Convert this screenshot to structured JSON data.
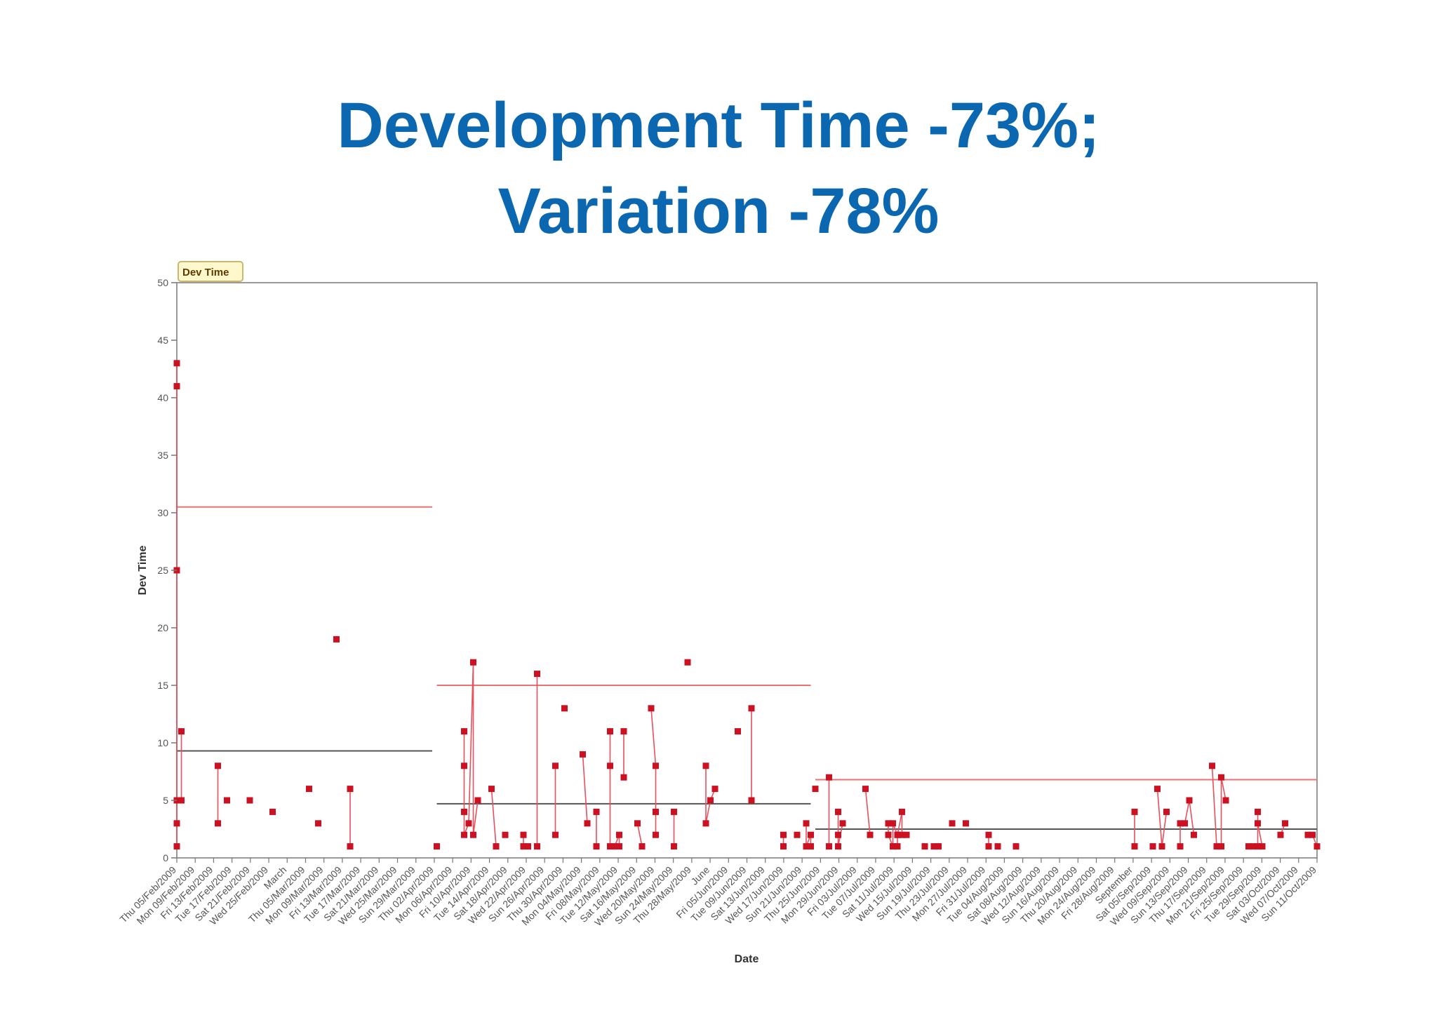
{
  "slide": {
    "title_line1": "Development Time -73%;",
    "title_line2": "Variation -78%"
  },
  "colors": {
    "title": "#0a67b0",
    "series": "#cc1122",
    "series_line": "#e8505c",
    "mean_line": "#555555",
    "limit_line": "#f07070",
    "legend_bg": "#fff8cc",
    "legend_border": "#c8b870"
  },
  "chart_data": {
    "type": "line",
    "legend": "Dev Time",
    "legend_position": "top-left",
    "xlabel": "Date",
    "ylabel": "Dev Time",
    "ylim": [
      0,
      50
    ],
    "yticks": [
      0,
      5,
      10,
      15,
      20,
      25,
      30,
      35,
      40,
      45,
      50
    ],
    "grid": false,
    "x_tick_labels": [
      "Thu 05/Feb/2009",
      "Mon 09/Feb/2009",
      "Fri 13/Feb/2009",
      "Tue 17/Feb/2009",
      "Sat 21/Feb/2009",
      "Wed 25/Feb/2009",
      "March",
      "Thu 05/Mar/2009",
      "Mon 09/Mar/2009",
      "Fri 13/Mar/2009",
      "Tue 17/Mar/2009",
      "Sat 21/Mar/2009",
      "Wed 25/Mar/2009",
      "Sun 29/Mar/2009",
      "Thu 02/Apr/2009",
      "Mon 06/Apr/2009",
      "Fri 10/Apr/2009",
      "Tue 14/Apr/2009",
      "Sat 18/Apr/2009",
      "Wed 22/Apr/2009",
      "Sun 26/Apr/2009",
      "Thu 30/Apr/2009",
      "Mon 04/May/2009",
      "Fri 08/May/2009",
      "Tue 12/May/2009",
      "Sat 16/May/2009",
      "Wed 20/May/2009",
      "Sun 24/May/2009",
      "Thu 28/May/2009",
      "June",
      "Fri 05/Jun/2009",
      "Tue 09/Jun/2009",
      "Sat 13/Jun/2009",
      "Wed 17/Jun/2009",
      "Sun 21/Jun/2009",
      "Thu 25/Jun/2009",
      "Mon 29/Jun/2009",
      "Fri 03/Jul/2009",
      "Tue 07/Jul/2009",
      "Sat 11/Jul/2009",
      "Wed 15/Jul/2009",
      "Sun 19/Jul/2009",
      "Thu 23/Jul/2009",
      "Mon 27/Jul/2009",
      "Fri 31/Jul/2009",
      "Tue 04/Aug/2009",
      "Sat 08/Aug/2009",
      "Wed 12/Aug/2009",
      "Sun 16/Aug/2009",
      "Thu 20/Aug/2009",
      "Mon 24/Aug/2009",
      "Fri 28/Aug/2009",
      "September",
      "Sat 05/Sep/2009",
      "Wed 09/Sep/2009",
      "Sun 13/Sep/2009",
      "Thu 17/Sep/2009",
      "Mon 21/Sep/2009",
      "Fri 25/Sep/2009",
      "Tue 29/Sep/2009",
      "Sat 03/Oct/2009",
      "Wed 07/Oct/2009",
      "Sun 11/Oct/2009"
    ],
    "xlim": [
      "2009-02-05",
      "2009-10-13"
    ],
    "series": [
      {
        "name": "Dev Time",
        "segments": [
          [
            [
              "2009-02-05",
              1
            ],
            [
              "2009-02-05",
              3
            ],
            [
              "2009-02-05",
              25
            ],
            [
              "2009-02-05",
              41
            ],
            [
              "2009-02-05",
              43
            ],
            [
              "2009-02-05",
              5
            ],
            [
              "2009-02-06",
              5
            ],
            [
              "2009-02-06",
              11
            ]
          ],
          [
            [
              "2009-02-14",
              8
            ],
            [
              "2009-02-14",
              3
            ]
          ],
          [
            [
              "2009-02-16",
              5
            ]
          ],
          [
            [
              "2009-02-21",
              5
            ]
          ],
          [
            [
              "2009-02-26",
              4
            ]
          ],
          [
            [
              "2009-03-06",
              6
            ]
          ],
          [
            [
              "2009-03-08",
              3
            ]
          ],
          [
            [
              "2009-03-12",
              19
            ]
          ],
          [
            [
              "2009-03-15",
              6
            ],
            [
              "2009-03-15",
              1
            ]
          ],
          [
            [
              "2009-04-03",
              1
            ]
          ],
          [
            [
              "2009-04-09",
              11
            ],
            [
              "2009-04-09",
              8
            ],
            [
              "2009-04-09",
              4
            ],
            [
              "2009-04-09",
              2
            ],
            [
              "2009-04-10",
              3
            ],
            [
              "2009-04-11",
              17
            ],
            [
              "2009-04-11",
              2
            ],
            [
              "2009-04-12",
              5
            ]
          ],
          [
            [
              "2009-04-15",
              6
            ],
            [
              "2009-04-16",
              1
            ]
          ],
          [
            [
              "2009-04-18",
              2
            ]
          ],
          [
            [
              "2009-04-22",
              2
            ],
            [
              "2009-04-22",
              1
            ],
            [
              "2009-04-23",
              1
            ]
          ],
          [
            [
              "2009-04-25",
              16
            ],
            [
              "2009-04-25",
              1
            ]
          ],
          [
            [
              "2009-04-29",
              8
            ],
            [
              "2009-04-29",
              2
            ]
          ],
          [
            [
              "2009-05-01",
              13
            ]
          ],
          [
            [
              "2009-05-05",
              9
            ],
            [
              "2009-05-06",
              3
            ]
          ],
          [
            [
              "2009-05-08",
              4
            ],
            [
              "2009-05-08",
              1
            ]
          ],
          [
            [
              "2009-05-11",
              11
            ],
            [
              "2009-05-11",
              8
            ],
            [
              "2009-05-11",
              1
            ],
            [
              "2009-05-12",
              1
            ],
            [
              "2009-05-13",
              2
            ],
            [
              "2009-05-13",
              1
            ]
          ],
          [
            [
              "2009-05-14",
              11
            ],
            [
              "2009-05-14",
              7
            ]
          ],
          [
            [
              "2009-05-17",
              3
            ],
            [
              "2009-05-18",
              1
            ]
          ],
          [
            [
              "2009-05-20",
              13
            ],
            [
              "2009-05-21",
              8
            ],
            [
              "2009-05-21",
              4
            ],
            [
              "2009-05-21",
              2
            ]
          ],
          [
            [
              "2009-05-25",
              4
            ],
            [
              "2009-05-25",
              1
            ]
          ],
          [
            [
              "2009-05-28",
              17
            ]
          ],
          [
            [
              "2009-06-01",
              8
            ],
            [
              "2009-06-01",
              3
            ],
            [
              "2009-06-02",
              5
            ],
            [
              "2009-06-03",
              6
            ]
          ],
          [
            [
              "2009-06-08",
              11
            ]
          ],
          [
            [
              "2009-06-11",
              13
            ],
            [
              "2009-06-11",
              5
            ]
          ],
          [
            [
              "2009-06-18",
              2
            ],
            [
              "2009-06-18",
              1
            ]
          ],
          [
            [
              "2009-06-21",
              2
            ]
          ],
          [
            [
              "2009-06-23",
              3
            ],
            [
              "2009-06-23",
              1
            ],
            [
              "2009-06-24",
              2
            ],
            [
              "2009-06-24",
              1
            ]
          ],
          [
            [
              "2009-06-25",
              6
            ]
          ],
          [
            [
              "2009-06-28",
              7
            ],
            [
              "2009-06-28",
              1
            ]
          ],
          [
            [
              "2009-06-30",
              4
            ],
            [
              "2009-06-30",
              2
            ],
            [
              "2009-06-30",
              1
            ],
            [
              "2009-07-01",
              3
            ]
          ],
          [
            [
              "2009-07-06",
              6
            ],
            [
              "2009-07-07",
              2
            ]
          ],
          [
            [
              "2009-07-11",
              3
            ],
            [
              "2009-07-11",
              2
            ],
            [
              "2009-07-12",
              1
            ],
            [
              "2009-07-12",
              3
            ],
            [
              "2009-07-13",
              2
            ],
            [
              "2009-07-13",
              1
            ],
            [
              "2009-07-13",
              2
            ],
            [
              "2009-07-14",
              4
            ],
            [
              "2009-07-14",
              2
            ],
            [
              "2009-07-15",
              2
            ]
          ],
          [
            [
              "2009-07-19",
              1
            ]
          ],
          [
            [
              "2009-07-21",
              1
            ],
            [
              "2009-07-22",
              1
            ]
          ],
          [
            [
              "2009-07-25",
              3
            ]
          ],
          [
            [
              "2009-07-28",
              3
            ]
          ],
          [
            [
              "2009-08-02",
              2
            ],
            [
              "2009-08-02",
              1
            ]
          ],
          [
            [
              "2009-08-04",
              1
            ]
          ],
          [
            [
              "2009-08-08",
              1
            ]
          ],
          [
            [
              "2009-09-03",
              4
            ],
            [
              "2009-09-03",
              1
            ]
          ],
          [
            [
              "2009-09-07",
              1
            ]
          ],
          [
            [
              "2009-09-08",
              6
            ],
            [
              "2009-09-09",
              1
            ],
            [
              "2009-09-10",
              4
            ]
          ],
          [
            [
              "2009-09-13",
              1
            ],
            [
              "2009-09-13",
              3
            ],
            [
              "2009-09-14",
              3
            ],
            [
              "2009-09-15",
              5
            ],
            [
              "2009-09-16",
              2
            ]
          ],
          [
            [
              "2009-09-20",
              8
            ],
            [
              "2009-09-21",
              1
            ],
            [
              "2009-09-22",
              1
            ],
            [
              "2009-09-22",
              7
            ],
            [
              "2009-09-23",
              5
            ]
          ],
          [
            [
              "2009-09-28",
              1
            ],
            [
              "2009-09-29",
              1
            ],
            [
              "2009-09-30",
              1
            ],
            [
              "2009-09-30",
              4
            ],
            [
              "2009-09-30",
              3
            ],
            [
              "2009-10-01",
              1
            ]
          ],
          [
            [
              "2009-10-05",
              2
            ],
            [
              "2009-10-06",
              3
            ]
          ],
          [
            [
              "2009-10-11",
              2
            ],
            [
              "2009-10-12",
              2
            ],
            [
              "2009-10-13",
              1
            ]
          ]
        ]
      }
    ],
    "reference_lines": [
      {
        "kind": "upper_limit",
        "from": "2009-02-05",
        "to": "2009-04-02",
        "value": 30.5
      },
      {
        "kind": "mean",
        "from": "2009-02-05",
        "to": "2009-04-02",
        "value": 9.3
      },
      {
        "kind": "upper_limit",
        "from": "2009-04-03",
        "to": "2009-06-24",
        "value": 15
      },
      {
        "kind": "mean",
        "from": "2009-04-03",
        "to": "2009-06-24",
        "value": 4.7
      },
      {
        "kind": "upper_limit",
        "from": "2009-06-25",
        "to": "2009-10-13",
        "value": 6.8
      },
      {
        "kind": "mean",
        "from": "2009-06-25",
        "to": "2009-10-13",
        "value": 2.5
      }
    ]
  }
}
